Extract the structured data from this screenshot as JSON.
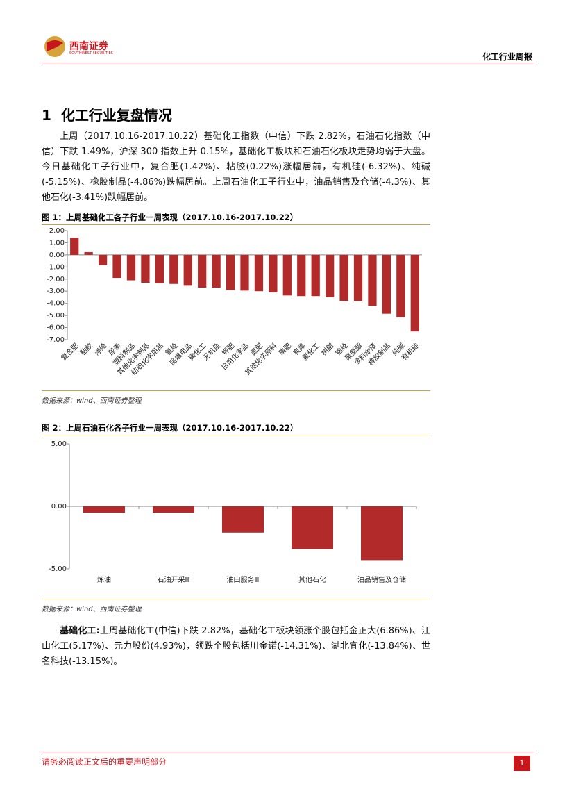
{
  "header": {
    "logo_cn": "西南证券",
    "logo_en": "SOUTHWEST SECURITIES",
    "report": "化工行业周报"
  },
  "section": {
    "number": "1",
    "title": "化工行业复盘情况"
  },
  "paragraphs": [
    "上周（2017.10.16-2017.10.22）基础化工指数（中信）下跌 2.82%，石油石化指数（中信）下跌 1.49%，沪深 300 指数上升 0.15%，基础化工板块和石油石化板块走势均弱于大盘。今日基础化工子行业中，复合肥(1.42%)、粘胶(0.22%)涨幅居前，有机硅(-6.32%)、纯碱(-5.15%)、橡胶制品(-4.86%)跌幅居前。上周石油化工子行业中，油品销售及仓储(-4.3%)、其他石化(-3.41%)跌幅居前。"
  ],
  "summary": {
    "lead": "基础化工:",
    "text": "上周基础化工(中信)下跌 2.82%，基础化工板块领涨个股包括金正大(6.86%)、江山化工(5.17%)、元力股份(4.93%)，领跌个股包括川金诺(-14.31%)、湖北宜化(-13.84%)、世名科技(-13.15%)。"
  },
  "figures": [
    {
      "caption": "图 1：上周基础化工各子行业一周表现（2017.10.16-2017.10.22）",
      "source": "数据来源：wind、西南证券整理"
    },
    {
      "caption": "图 2：上周石油石化各子行业一周表现（2017.10.16-2017.10.22）",
      "source": "数据来源：wind、西南证券整理"
    }
  ],
  "chart_data": [
    {
      "type": "bar",
      "color": "#b22a2a",
      "categories": [
        "复合肥",
        "粘胶",
        "涤纶",
        "尿素",
        "塑料制品",
        "其他化学制品",
        "纺织化学用品",
        "氨纶",
        "民爆用品",
        "磷化工",
        "无机盐",
        "钾肥",
        "日用化学品",
        "氮肥",
        "其他化学原料",
        "磷肥",
        "炭黑",
        "氟化工",
        "树脂",
        "锦纶",
        "聚氨酯",
        "涂料涂漆",
        "橡胶制品",
        "纯碱",
        "有机硅"
      ],
      "values": [
        1.42,
        0.22,
        -0.85,
        -1.9,
        -2.1,
        -2.3,
        -2.35,
        -2.4,
        -2.55,
        -2.7,
        -2.7,
        -2.9,
        -2.95,
        -3.0,
        -3.1,
        -3.35,
        -3.4,
        -3.4,
        -3.5,
        -3.8,
        -3.8,
        -4.2,
        -4.86,
        -5.15,
        -6.32
      ],
      "ylim": [
        -7,
        2
      ],
      "yticks": [
        {
          "value": 2,
          "label": "2.00"
        },
        {
          "value": 1,
          "label": "1.00"
        },
        {
          "value": 0,
          "label": "0.00"
        },
        {
          "value": -1,
          "label": "-1.00"
        },
        {
          "value": -2,
          "label": "-2.00"
        },
        {
          "value": -3,
          "label": "-3.00"
        },
        {
          "value": -4,
          "label": "-4.00"
        },
        {
          "value": -5,
          "label": "-5.00"
        },
        {
          "value": -6,
          "label": "-6.00"
        },
        {
          "value": -7,
          "label": "-7.00"
        }
      ]
    },
    {
      "type": "bar",
      "color": "#b22a2a",
      "categories": [
        "炼油",
        "石油开采Ⅲ",
        "油田服务Ⅲ",
        "其他石化",
        "油品销售及仓储"
      ],
      "values": [
        -0.5,
        -0.5,
        -2.1,
        -3.41,
        -4.3
      ],
      "ylim": [
        -5,
        5
      ],
      "yticks": [
        {
          "value": 5,
          "label": "5.00"
        },
        {
          "value": 0,
          "label": "0.00"
        },
        {
          "value": -5,
          "label": "-5.00"
        }
      ]
    }
  ]
}
